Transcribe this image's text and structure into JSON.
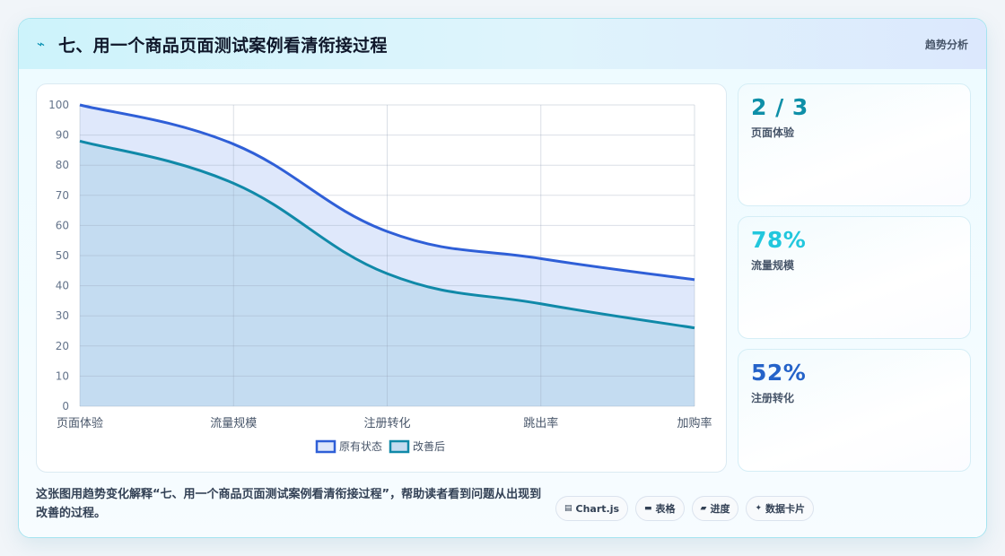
{
  "header": {
    "icon": "⌁",
    "title": "七、用一个商品页面测试案例看清衔接过程",
    "tag": "趋势分析"
  },
  "kpis": [
    {
      "value": "2 / 3",
      "label": "页面体验",
      "color": "#0e8fa8"
    },
    {
      "value": "78%",
      "label": "流量规模",
      "color": "#22c7dd"
    },
    {
      "value": "52%",
      "label": "注册转化",
      "color": "#2563c9"
    }
  ],
  "footer": {
    "text": "这张图用趋势变化解释“七、用一个商品页面测试案例看清衔接过程”，帮助读者看到问题从出现到改善的过程。",
    "chips": [
      {
        "icon": "▤",
        "label": "Chart.js",
        "icon_name": "chart-icon"
      },
      {
        "icon": "▬",
        "label": "表格",
        "icon_name": "table-icon"
      },
      {
        "icon": "▰",
        "label": "进度",
        "icon_name": "progress-icon"
      },
      {
        "icon": "✦",
        "label": "数据卡片",
        "icon_name": "sparkle-icon"
      }
    ]
  },
  "chart_data": {
    "type": "line",
    "categories": [
      "页面体验",
      "流量规模",
      "注册转化",
      "跳出率",
      "加购率"
    ],
    "series": [
      {
        "name": "原有状态",
        "values": [
          100,
          87,
          58,
          49,
          42
        ],
        "color": "#2f5fd7",
        "fill": "#dfe8fb"
      },
      {
        "name": "改善后",
        "values": [
          88,
          74,
          44,
          34,
          26
        ],
        "color": "#1089a8",
        "fill": "#c4dcf1"
      }
    ],
    "ylim": [
      0,
      100
    ],
    "yticks": [
      0,
      10,
      20,
      30,
      40,
      50,
      60,
      70,
      80,
      90,
      100
    ],
    "grid": true,
    "legend": "bottom"
  }
}
